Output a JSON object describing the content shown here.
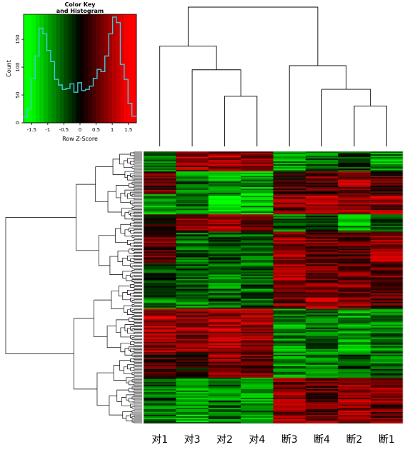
{
  "chart_data": [
    {
      "type": "histogram",
      "title": "Color Key",
      "subtitle": "and Histogram",
      "xlabel": "Row Z-Score",
      "ylabel": "Count",
      "xlim": [
        -1.75,
        1.75
      ],
      "ylim": [
        0,
        195
      ],
      "x_ticks": [
        "-1.5",
        "-1",
        "-0.5",
        "0",
        "0.5",
        "1",
        "1.5"
      ],
      "y_ticks": [
        "0",
        "50",
        "100",
        "150"
      ],
      "colors": {
        "low": "#00ff00",
        "mid": "#000000",
        "high": "#ff0000",
        "histogram_line": "#40c8d8"
      },
      "bin_edges": [
        -1.75,
        -1.63,
        -1.51,
        -1.39,
        -1.27,
        -1.15,
        -1.03,
        -0.91,
        -0.79,
        -0.67,
        -0.55,
        -0.43,
        -0.31,
        -0.19,
        -0.07,
        0.05,
        0.17,
        0.29,
        0.41,
        0.53,
        0.65,
        0.77,
        0.89,
        1.01,
        1.13,
        1.25,
        1.37,
        1.49,
        1.61,
        1.75
      ],
      "counts": [
        10,
        25,
        80,
        120,
        170,
        160,
        130,
        110,
        78,
        68,
        60,
        62,
        70,
        55,
        72,
        58,
        60,
        66,
        80,
        96,
        92,
        120,
        160,
        190,
        180,
        105,
        78,
        35,
        12
      ]
    },
    {
      "type": "heatmap",
      "columns": [
        "对1",
        "对3",
        "对2",
        "对4",
        "断3",
        "断4",
        "断2",
        "断1"
      ],
      "column_groups": [
        "对",
        "对",
        "对",
        "对",
        "断",
        "断",
        "断",
        "断"
      ],
      "colors": {
        "low": "#00ff00",
        "mid": "#000000",
        "high": "#ff0000"
      },
      "row_count": 190,
      "row_dendrogram": true,
      "column_dendrogram": true,
      "column_dendrogram_merges": [
        {
          "a": "对2",
          "b": "对4",
          "height": 0.36
        },
        {
          "a": "断2",
          "b": "断1",
          "height": 0.29
        },
        {
          "a": "断4",
          "b": "断2+断1",
          "height": 0.41
        },
        {
          "a": "对3",
          "b": "对2+对4",
          "height": 0.55
        },
        {
          "a": "断3",
          "b": "断4+断2+断1",
          "height": 0.58
        },
        {
          "a": "对1",
          "b": "对3+对2+对4",
          "height": 0.72
        },
        {
          "a": "对",
          "b": "断",
          "height": 1.0
        }
      ],
      "row_blocks": [
        {
          "rows": 14,
          "pattern": [
            -0.5,
            0.8,
            0.9,
            0.7,
            -0.9,
            -0.6,
            -0.3,
            -0.9
          ]
        },
        {
          "rows": 16,
          "pattern": [
            0.6,
            -0.7,
            -0.8,
            -0.9,
            0.3,
            0.5,
            0.8,
            0.4
          ]
        },
        {
          "rows": 14,
          "pattern": [
            -0.8,
            -0.6,
            -1.2,
            -1.0,
            0.7,
            0.9,
            0.8,
            0.8
          ]
        },
        {
          "rows": 12,
          "pattern": [
            0.3,
            0.8,
            0.9,
            0.7,
            -0.6,
            -0.4,
            -0.9,
            -0.5
          ]
        },
        {
          "rows": 22,
          "pattern": [
            0.5,
            -0.6,
            -0.4,
            -0.5,
            0.8,
            0.6,
            0.5,
            0.9
          ]
        },
        {
          "rows": 20,
          "pattern": [
            -0.3,
            -0.5,
            -0.7,
            -0.6,
            0.8,
            0.6,
            0.7,
            0.6
          ]
        },
        {
          "rows": 12,
          "pattern": [
            -0.6,
            -0.7,
            -0.5,
            -0.5,
            0.6,
            0.9,
            0.7,
            0.5
          ]
        },
        {
          "rows": 30,
          "pattern": [
            0.9,
            0.9,
            1.0,
            0.9,
            -0.8,
            -0.6,
            -0.9,
            -0.7
          ]
        },
        {
          "rows": 18,
          "pattern": [
            0.4,
            0.2,
            0.8,
            0.6,
            -0.8,
            -0.7,
            -0.5,
            -0.6
          ]
        },
        {
          "rows": 16,
          "pattern": [
            -0.6,
            -0.8,
            -0.7,
            -0.8,
            0.7,
            0.5,
            0.8,
            0.7
          ]
        },
        {
          "rows": 16,
          "pattern": [
            -0.7,
            -0.9,
            -0.6,
            -0.8,
            0.8,
            0.6,
            0.9,
            0.6
          ]
        }
      ]
    }
  ]
}
